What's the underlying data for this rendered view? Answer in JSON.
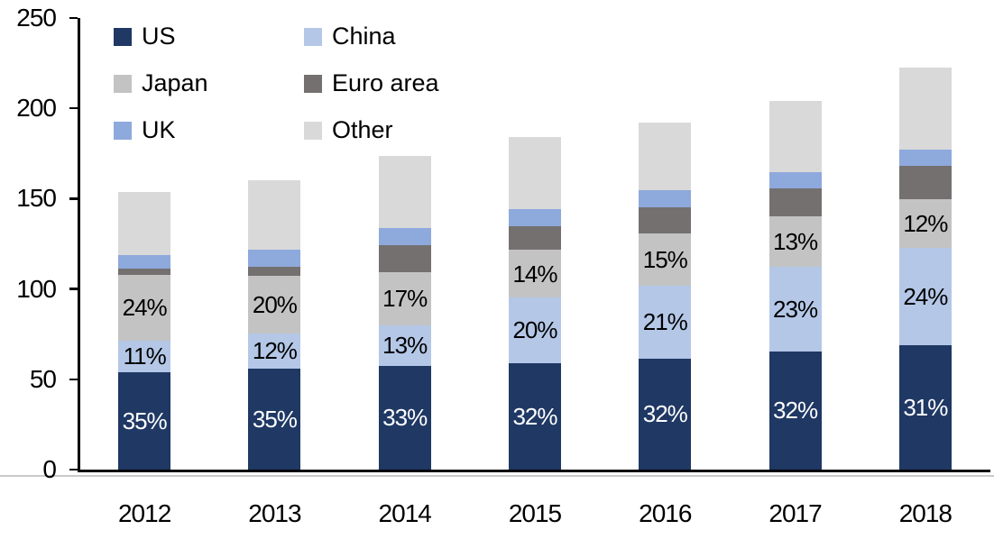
{
  "background_color": "#ffffff",
  "axis_color": "#000000",
  "chart_data": {
    "type": "bar",
    "stacked": true,
    "title": "",
    "xlabel": "",
    "ylabel": "",
    "categories": [
      "2012",
      "2013",
      "2014",
      "2015",
      "2016",
      "2017",
      "2018"
    ],
    "series": [
      {
        "name": "US",
        "color": "#1F3864",
        "values": [
          54,
          56,
          57.5,
          59,
          61.5,
          65.5,
          69
        ],
        "labels": [
          "35%",
          "35%",
          "33%",
          "32%",
          "32%",
          "32%",
          "31%"
        ],
        "label_color": "#ffffff"
      },
      {
        "name": "China",
        "color": "#B4C7E7",
        "values": [
          17.5,
          19.5,
          22.5,
          36.5,
          40.5,
          47,
          53.5
        ],
        "labels": [
          "11%",
          "12%",
          "13%",
          "20%",
          "21%",
          "23%",
          "24%"
        ],
        "label_color": "#000000"
      },
      {
        "name": "Japan",
        "color": "#C3C3C3",
        "values": [
          36.5,
          32,
          29.5,
          26,
          28.5,
          27.5,
          27
        ],
        "labels": [
          "24%",
          "20%",
          "17%",
          "14%",
          "15%",
          "13%",
          "12%"
        ],
        "label_color": "#000000"
      },
      {
        "name": "Euro area",
        "color": "#747070",
        "values": [
          3.5,
          5,
          14.5,
          13,
          14.5,
          15.5,
          18.5
        ],
        "labels": null,
        "label_color": "#000000"
      },
      {
        "name": "UK",
        "color": "#8EA9DC",
        "values": [
          7.5,
          9.5,
          9.5,
          9.5,
          9.5,
          9,
          9
        ],
        "labels": null,
        "label_color": "#000000"
      },
      {
        "name": "Other",
        "color": "#D9D9D9",
        "values": [
          34.5,
          38,
          40,
          40,
          37.5,
          39.5,
          45.5
        ],
        "labels": null,
        "label_color": "#000000"
      }
    ],
    "totals": [
      153.5,
      160,
      173.5,
      184,
      192,
      204,
      222.5
    ],
    "ylim": [
      0,
      250
    ],
    "yticks": [
      "0",
      "50",
      "100",
      "150",
      "200",
      "250"
    ],
    "grid": false,
    "legend_position": "top-left",
    "legend_order": [
      "US",
      "China",
      "Japan",
      "Euro area",
      "UK",
      "Other"
    ]
  }
}
